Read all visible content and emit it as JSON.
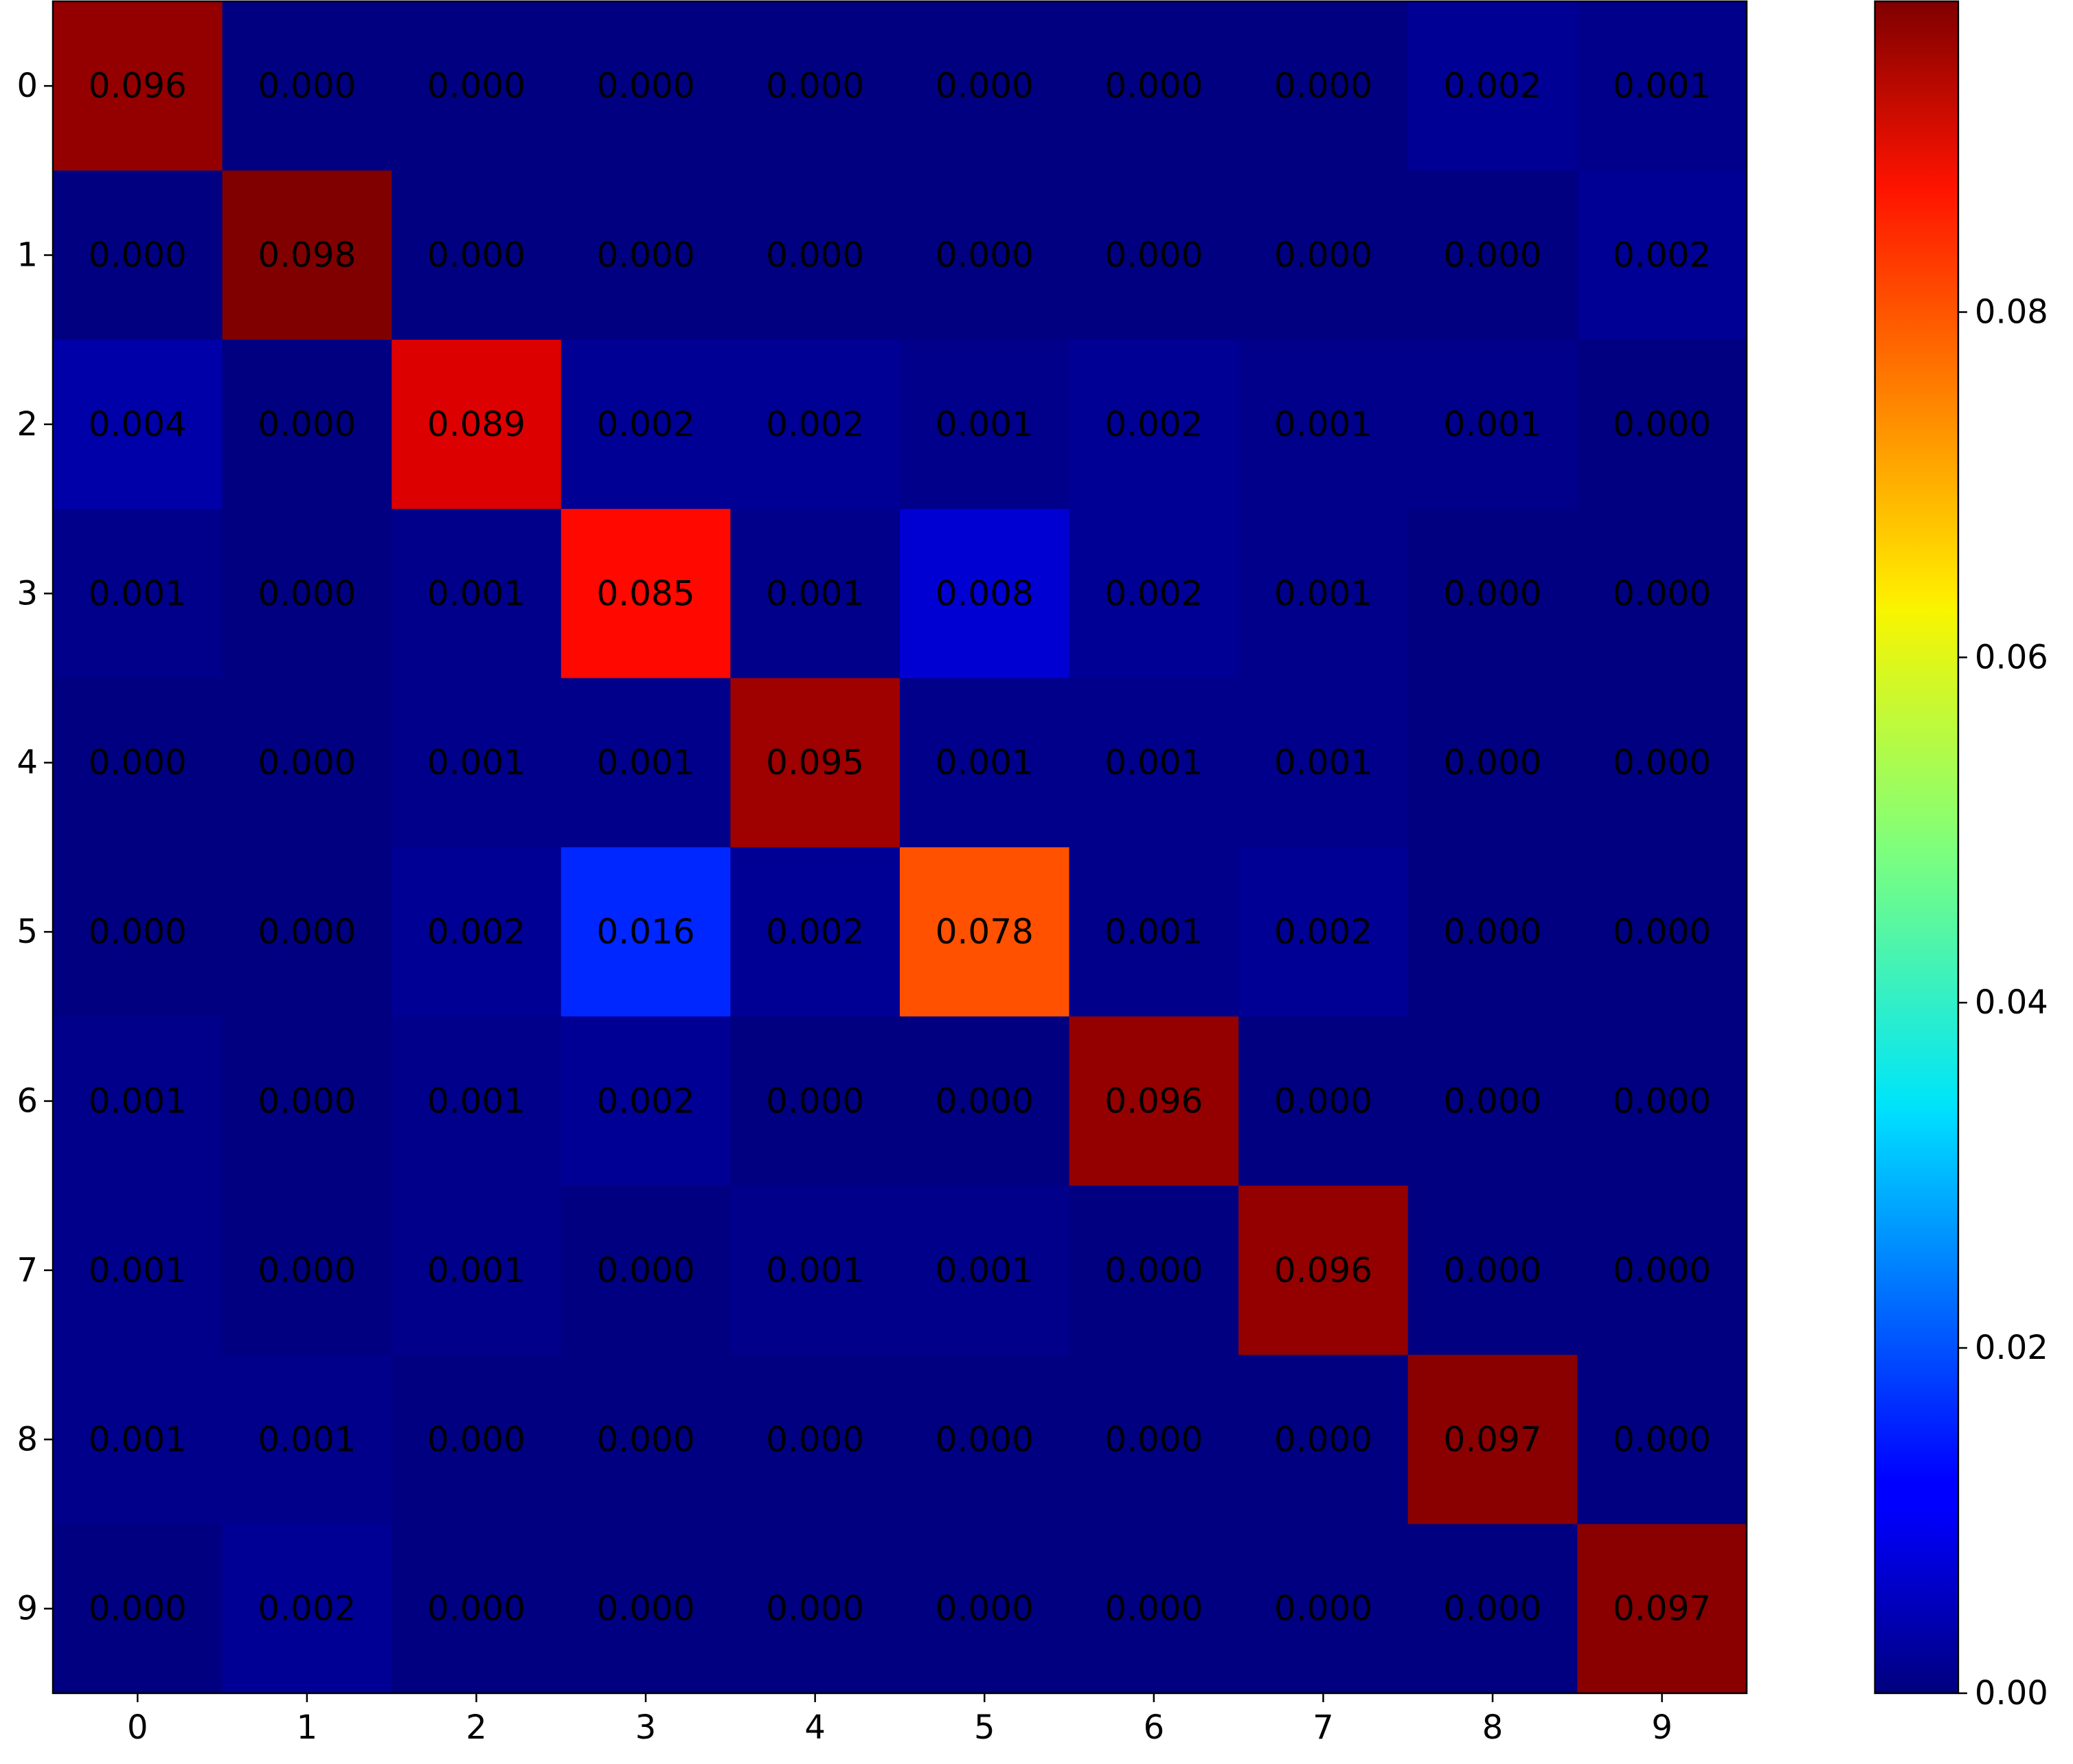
{
  "chart_data": {
    "type": "heatmap",
    "title": "",
    "xlabel": "",
    "ylabel": "",
    "x_categories": [
      "0",
      "1",
      "2",
      "3",
      "4",
      "5",
      "6",
      "7",
      "8",
      "9"
    ],
    "y_categories": [
      "0",
      "1",
      "2",
      "3",
      "4",
      "5",
      "6",
      "7",
      "8",
      "9"
    ],
    "values": [
      [
        0.096,
        0.0,
        0.0,
        0.0,
        0.0,
        0.0,
        0.0,
        0.0,
        0.002,
        0.001
      ],
      [
        0.0,
        0.098,
        0.0,
        0.0,
        0.0,
        0.0,
        0.0,
        0.0,
        0.0,
        0.002
      ],
      [
        0.004,
        0.0,
        0.089,
        0.002,
        0.002,
        0.001,
        0.002,
        0.001,
        0.001,
        0.0
      ],
      [
        0.001,
        0.0,
        0.001,
        0.085,
        0.001,
        0.008,
        0.002,
        0.001,
        0.0,
        0.0
      ],
      [
        0.0,
        0.0,
        0.001,
        0.001,
        0.095,
        0.001,
        0.001,
        0.001,
        0.0,
        0.0
      ],
      [
        0.0,
        0.0,
        0.002,
        0.016,
        0.002,
        0.078,
        0.001,
        0.002,
        0.0,
        0.0
      ],
      [
        0.001,
        0.0,
        0.001,
        0.002,
        0.0,
        0.0,
        0.096,
        0.0,
        0.0,
        0.0
      ],
      [
        0.001,
        0.0,
        0.001,
        0.0,
        0.001,
        0.001,
        0.0,
        0.096,
        0.0,
        0.0
      ],
      [
        0.001,
        0.001,
        0.0,
        0.0,
        0.0,
        0.0,
        0.0,
        0.0,
        0.097,
        0.0
      ],
      [
        0.0,
        0.002,
        0.0,
        0.0,
        0.0,
        0.0,
        0.0,
        0.0,
        0.0,
        0.097
      ]
    ],
    "colormap": "jet",
    "value_range": [
      0.0,
      0.098
    ],
    "colorbar": {
      "ticks": [
        0.0,
        0.02,
        0.04,
        0.06,
        0.08
      ],
      "tick_labels": [
        "0.00",
        "0.02",
        "0.04",
        "0.06",
        "0.08"
      ],
      "placement": "right"
    },
    "grid": false,
    "legend": "none",
    "annotation_color": "#000000"
  }
}
